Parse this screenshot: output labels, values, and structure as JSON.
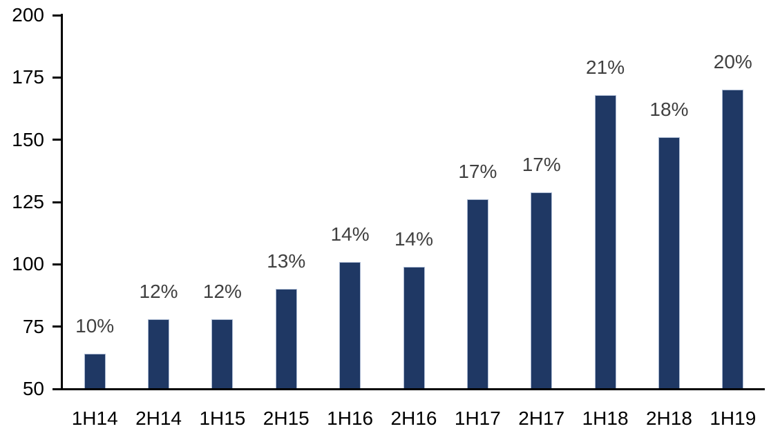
{
  "chart_data": {
    "type": "bar",
    "title": "",
    "xlabel": "",
    "ylabel": "",
    "categories": [
      "1H14",
      "2H14",
      "1H15",
      "2H15",
      "1H16",
      "2H16",
      "1H17",
      "2H17",
      "1H18",
      "2H18",
      "1H19"
    ],
    "values": [
      64,
      78,
      78,
      90,
      101,
      99,
      126,
      129,
      168,
      151,
      170
    ],
    "bar_labels": [
      "10%",
      "12%",
      "12%",
      "13%",
      "14%",
      "14%",
      "17%",
      "17%",
      "21%",
      "18%",
      "20%"
    ],
    "ylim": [
      50,
      200
    ],
    "yticks": [
      50,
      75,
      100,
      125,
      150,
      175,
      200
    ],
    "grid": false,
    "legend": false,
    "colors": {
      "bar_fill": "#1f3864",
      "bar_edge": "#aab9d2",
      "data_label": "#404040",
      "axis": "#000000",
      "background": "#ffffff"
    }
  }
}
